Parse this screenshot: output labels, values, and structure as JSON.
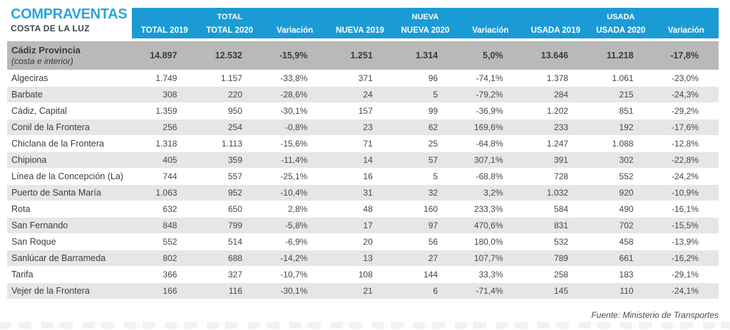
{
  "chart_data": {
    "type": "table",
    "title": "COMPRAVENTAS",
    "subtitle": "COSTA DE LA LUZ",
    "column_groups": [
      {
        "label": "TOTAL",
        "span": 3
      },
      {
        "label": "NUEVA",
        "span": 3
      },
      {
        "label": "USADA",
        "span": 3
      }
    ],
    "columns": [
      "TOTAL 2019",
      "TOTAL 2020",
      "Variación",
      "NUEVA 2019",
      "NUEVA 2020",
      "Variación",
      "USADA 2019",
      "USADA 2020",
      "Variación"
    ],
    "summary_row": {
      "name": "Cádiz Provincia",
      "note": "(costa e interior)",
      "values": [
        "14.897",
        "12.532",
        "-15,9%",
        "1.251",
        "1.314",
        "5,0%",
        "13.646",
        "11.218",
        "-17,8%"
      ]
    },
    "rows": [
      {
        "name": "Algeciras",
        "values": [
          "1.749",
          "1.157",
          "-33,8%",
          "371",
          "96",
          "-74,1%",
          "1.378",
          "1.061",
          "-23,0%"
        ]
      },
      {
        "name": "Barbate",
        "values": [
          "308",
          "220",
          "-28,6%",
          "24",
          "5",
          "-79,2%",
          "284",
          "215",
          "-24,3%"
        ]
      },
      {
        "name": "Cádiz, Capital",
        "values": [
          "1.359",
          "950",
          "-30,1%",
          "157",
          "99",
          "-36,9%",
          "1.202",
          "851",
          "-29,2%"
        ]
      },
      {
        "name": "Conil de la Frontera",
        "values": [
          "256",
          "254",
          "-0,8%",
          "23",
          "62",
          "169,6%",
          "233",
          "192",
          "-17,6%"
        ]
      },
      {
        "name": "Chiclana de la Frontera",
        "values": [
          "1.318",
          "1.113",
          "-15,6%",
          "71",
          "25",
          "-64,8%",
          "1.247",
          "1.088",
          "-12,8%"
        ]
      },
      {
        "name": "Chipiona",
        "values": [
          "405",
          "359",
          "-11,4%",
          "14",
          "57",
          "307,1%",
          "391",
          "302",
          "-22,8%"
        ]
      },
      {
        "name": "Línea de la Concepción (La)",
        "values": [
          "744",
          "557",
          "-25,1%",
          "16",
          "5",
          "-68,8%",
          "728",
          "552",
          "-24,2%"
        ]
      },
      {
        "name": "Puerto de Santa María",
        "values": [
          "1.063",
          "952",
          "-10,4%",
          "31",
          "32",
          "3,2%",
          "1.032",
          "920",
          "-10,9%"
        ]
      },
      {
        "name": "Rota",
        "values": [
          "632",
          "650",
          "2,8%",
          "48",
          "160",
          "233,3%",
          "584",
          "490",
          "-16,1%"
        ]
      },
      {
        "name": "San Fernando",
        "values": [
          "848",
          "799",
          "-5,8%",
          "17",
          "97",
          "470,6%",
          "831",
          "702",
          "-15,5%"
        ]
      },
      {
        "name": "San Roque",
        "values": [
          "552",
          "514",
          "-6,9%",
          "20",
          "56",
          "180,0%",
          "532",
          "458",
          "-13,9%"
        ]
      },
      {
        "name": "Sanlúcar de Barrameda",
        "values": [
          "802",
          "688",
          "-14,2%",
          "13",
          "27",
          "107,7%",
          "789",
          "661",
          "-16,2%"
        ]
      },
      {
        "name": "Tarifa",
        "values": [
          "366",
          "327",
          "-10,7%",
          "108",
          "144",
          "33,3%",
          "258",
          "183",
          "-29,1%"
        ]
      },
      {
        "name": "Vejer de la Frontera",
        "values": [
          "166",
          "116",
          "-30,1%",
          "21",
          "6",
          "-71,4%",
          "145",
          "110",
          "-24,1%"
        ]
      }
    ],
    "source": "Fuente: Ministerio de Transportes",
    "layout": {
      "grid": false,
      "header_position": "top",
      "summary_row_position": "first"
    }
  },
  "colors": {
    "header_blue": "#1b9bd5",
    "title_blue": "#2ba4d9",
    "title_dark": "#3d4248",
    "summary_gray": "#b9b9b9",
    "alt_row_gray": "#e6e6e6",
    "body_text": "#3d3d3d"
  }
}
